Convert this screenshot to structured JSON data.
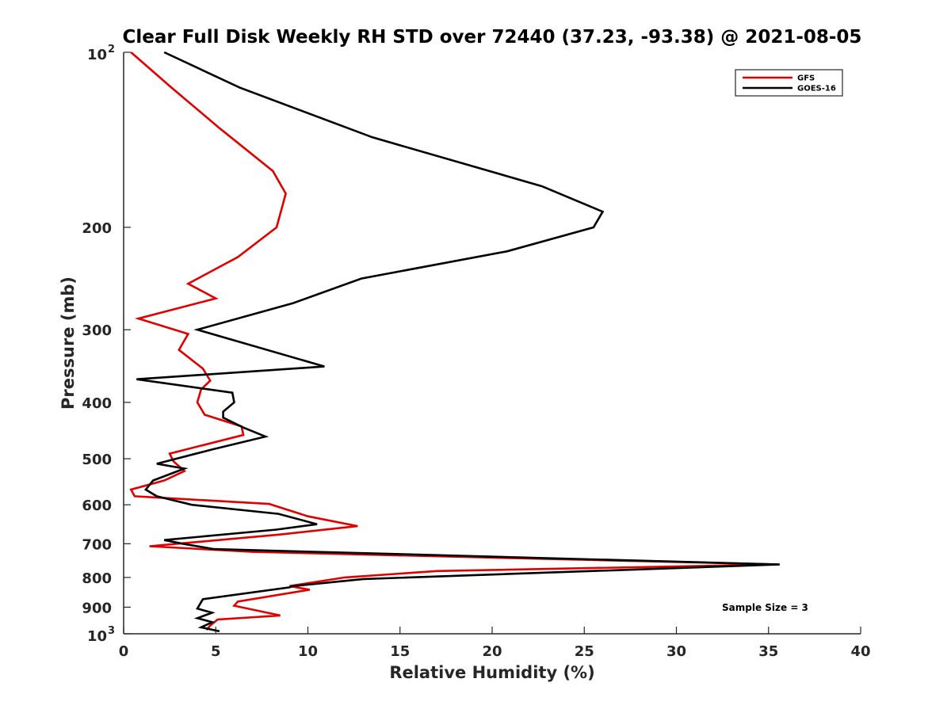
{
  "chart_data": {
    "type": "line",
    "title": "Clear Full Disk Weekly RH STD over 72440 (37.23, -93.38) @ 2021-08-05",
    "xlabel": "Relative Humidity (%)",
    "ylabel": "Pressure (mb)",
    "xlim": [
      0,
      40
    ],
    "ylim": [
      100,
      1000
    ],
    "y_scale": "log",
    "y_reversed": true,
    "grid": false,
    "legend_position": "top-right",
    "x_ticks": [
      "0",
      "5",
      "10",
      "15",
      "20",
      "25",
      "30",
      "35",
      "40"
    ],
    "y_ticks": [
      {
        "value": 100,
        "label": "10",
        "exponent": "2"
      },
      {
        "value": 200,
        "label": "200"
      },
      {
        "value": 300,
        "label": "300"
      },
      {
        "value": 400,
        "label": "400"
      },
      {
        "value": 500,
        "label": "500"
      },
      {
        "value": 600,
        "label": "600"
      },
      {
        "value": 700,
        "label": "700"
      },
      {
        "value": 800,
        "label": "800"
      },
      {
        "value": 900,
        "label": "900"
      },
      {
        "value": 1000,
        "label": "10",
        "exponent": "3"
      }
    ],
    "annotation": "Sample Size = 3",
    "series": [
      {
        "name": "GFS",
        "color": "#e00000",
        "points": [
          [
            0.4,
            100
          ],
          [
            2.6,
            115
          ],
          [
            5.2,
            135
          ],
          [
            8.1,
            160
          ],
          [
            8.8,
            175
          ],
          [
            8.3,
            200
          ],
          [
            6.2,
            225
          ],
          [
            3.5,
            250
          ],
          [
            5.0,
            265
          ],
          [
            0.8,
            287
          ],
          [
            3.5,
            305
          ],
          [
            3.0,
            325
          ],
          [
            4.3,
            350
          ],
          [
            4.7,
            367
          ],
          [
            4.2,
            380
          ],
          [
            4.0,
            400
          ],
          [
            4.4,
            420
          ],
          [
            6.4,
            440
          ],
          [
            6.5,
            455
          ],
          [
            2.5,
            490
          ],
          [
            2.7,
            505
          ],
          [
            3.3,
            525
          ],
          [
            2.2,
            545
          ],
          [
            0.4,
            565
          ],
          [
            0.6,
            580
          ],
          [
            7.9,
            598
          ],
          [
            10.0,
            628
          ],
          [
            12.7,
            653
          ],
          [
            8.5,
            675
          ],
          [
            1.4,
            707
          ],
          [
            7.0,
            723
          ],
          [
            35.6,
            760
          ],
          [
            17.0,
            780
          ],
          [
            12.0,
            800
          ],
          [
            9.0,
            828
          ],
          [
            10.1,
            840
          ],
          [
            6.2,
            880
          ],
          [
            6.0,
            895
          ],
          [
            8.5,
            930
          ],
          [
            5.1,
            945
          ],
          [
            4.7,
            968
          ],
          [
            4.5,
            985
          ]
        ]
      },
      {
        "name": "GOES-16",
        "color": "#000000",
        "points": [
          [
            2.2,
            100
          ],
          [
            6.3,
            115
          ],
          [
            13.5,
            140
          ],
          [
            22.7,
            170
          ],
          [
            26.0,
            188
          ],
          [
            25.5,
            200
          ],
          [
            20.8,
            220
          ],
          [
            12.9,
            245
          ],
          [
            9.2,
            270
          ],
          [
            4.0,
            300
          ],
          [
            10.9,
            347
          ],
          [
            0.7,
            365
          ],
          [
            5.9,
            385
          ],
          [
            6.0,
            400
          ],
          [
            5.4,
            415
          ],
          [
            5.4,
            425
          ],
          [
            6.5,
            442
          ],
          [
            7.7,
            458
          ],
          [
            4.8,
            482
          ],
          [
            1.8,
            510
          ],
          [
            3.3,
            520
          ],
          [
            1.6,
            545
          ],
          [
            1.2,
            565
          ],
          [
            1.8,
            580
          ],
          [
            3.7,
            600
          ],
          [
            8.4,
            622
          ],
          [
            10.5,
            648
          ],
          [
            8.3,
            662
          ],
          [
            2.2,
            690
          ],
          [
            3.2,
            700
          ],
          [
            4.9,
            715
          ],
          [
            35.6,
            760
          ],
          [
            13.0,
            805
          ],
          [
            9.2,
            828
          ],
          [
            9.0,
            832
          ],
          [
            4.3,
            872
          ],
          [
            4.0,
            905
          ],
          [
            4.8,
            920
          ],
          [
            4.0,
            940
          ],
          [
            4.8,
            955
          ],
          [
            4.2,
            975
          ],
          [
            5.2,
            990
          ]
        ]
      }
    ]
  }
}
